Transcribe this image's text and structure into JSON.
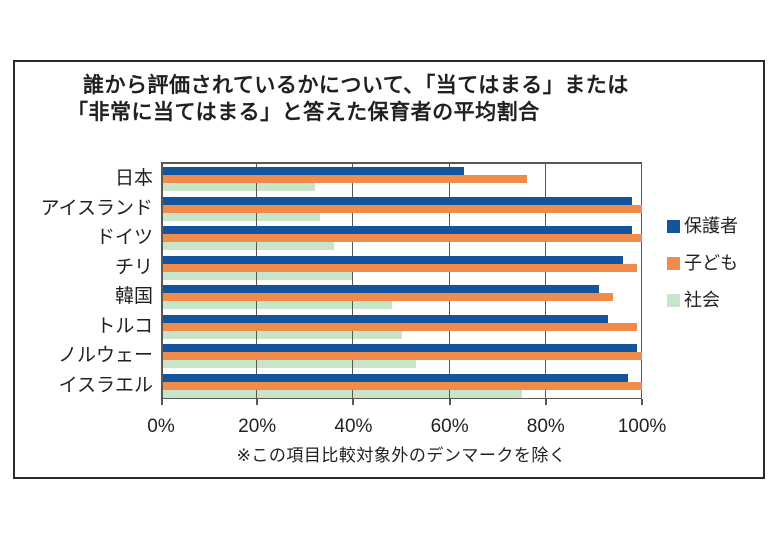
{
  "title": {
    "line1": "誰から評価されているかについて、「当てはまる」または",
    "line2": "「非常に当てはまる」と答えた保育者の平均割合"
  },
  "chart_data": {
    "type": "bar",
    "orientation": "horizontal",
    "title": "誰から評価されているかについて、「当てはまる」または「非常に当てはまる」と答えた保育者の平均割合",
    "categories": [
      "日本",
      "アイスランド",
      "ドイツ",
      "チリ",
      "韓国",
      "トルコ",
      "ノルウェー",
      "イスラエル"
    ],
    "series": [
      {
        "name": "保護者",
        "color": "#14549E",
        "values": [
          63,
          98,
          98,
          96,
          91,
          93,
          99,
          97
        ]
      },
      {
        "name": "子ども",
        "color": "#F08B4B",
        "values": [
          76,
          100,
          100,
          99,
          94,
          99,
          100,
          100
        ]
      },
      {
        "name": "社会",
        "color": "#C8E4C9",
        "values": [
          32,
          33,
          36,
          40,
          48,
          50,
          53,
          75
        ]
      }
    ],
    "xlim": [
      0,
      100
    ],
    "x_ticks": [
      "0%",
      "20%",
      "40%",
      "60%",
      "80%",
      "100%"
    ],
    "grid": true,
    "legend_position": "right",
    "footnote": "※この項目比較対象外のデンマークを除く"
  },
  "colors": {
    "axis": "#595757",
    "text": "#231F20",
    "border": "#2E2A29",
    "background": "#FFFFFF"
  }
}
